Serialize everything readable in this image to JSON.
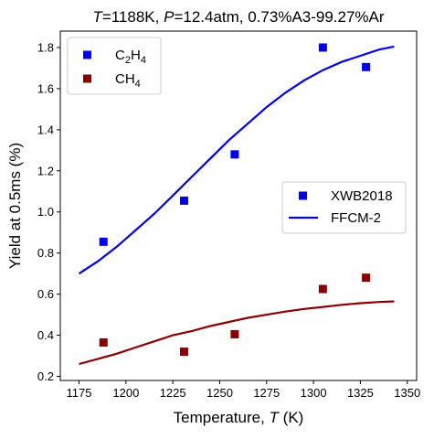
{
  "chart_data": {
    "type": "scatter",
    "title_parts": [
      {
        "text": "T",
        "italic": true
      },
      {
        "text": "=1188K, ",
        "italic": false
      },
      {
        "text": "P",
        "italic": true
      },
      {
        "text": "=12.4atm, 0.73%A3-99.27%Ar",
        "italic": false
      }
    ],
    "xlabel_parts": [
      {
        "text": "Temperature, ",
        "italic": false
      },
      {
        "text": "T",
        "italic": true
      },
      {
        "text": " (K)",
        "italic": false
      }
    ],
    "ylabel": "Yield at 0.5ms (%)",
    "xlim": [
      1165,
      1355
    ],
    "ylim": [
      0.18,
      1.88
    ],
    "xticks": [
      1175,
      1200,
      1225,
      1250,
      1275,
      1300,
      1325,
      1350
    ],
    "yticks": [
      0.2,
      0.4,
      0.6,
      0.8,
      1.0,
      1.2,
      1.4,
      1.6,
      1.8
    ],
    "ytick_labels": [
      "0.2",
      "0.4",
      "0.6",
      "0.8",
      "1.0",
      "1.2",
      "1.4",
      "1.6",
      "1.8"
    ],
    "grid": false,
    "species_legend": {
      "placement": "top-left",
      "entries": [
        {
          "base": "C",
          "sub1": "2",
          "mid": "H",
          "sub2": "4",
          "color": "#0000ff"
        },
        {
          "base": "CH",
          "sub1": "4",
          "mid": "",
          "sub2": "",
          "color": "#8b0000"
        }
      ]
    },
    "source_legend": {
      "placement": "center-right",
      "entries": [
        {
          "label": "XWB2018",
          "style": "marker"
        },
        {
          "label": "FFCM-2",
          "style": "line"
        }
      ]
    },
    "series": [
      {
        "name": "C2H4 XWB2018",
        "kind": "scatter",
        "color": "#0000ff",
        "x": [
          1188,
          1231,
          1258,
          1305,
          1328
        ],
        "y": [
          0.855,
          1.055,
          1.28,
          1.8,
          1.705
        ]
      },
      {
        "name": "CH4 XWB2018",
        "kind": "scatter",
        "color": "#8b0000",
        "x": [
          1188,
          1231,
          1258,
          1305,
          1328
        ],
        "y": [
          0.365,
          0.32,
          0.405,
          0.625,
          0.68
        ]
      },
      {
        "name": "C2H4 FFCM-2",
        "kind": "line",
        "color": "#0000ff",
        "x": [
          1175,
          1185,
          1195,
          1205,
          1215,
          1225,
          1235,
          1245,
          1255,
          1265,
          1275,
          1285,
          1295,
          1305,
          1315,
          1325,
          1335,
          1343
        ],
        "y": [
          0.7,
          0.76,
          0.83,
          0.91,
          0.99,
          1.08,
          1.17,
          1.26,
          1.35,
          1.43,
          1.51,
          1.58,
          1.64,
          1.69,
          1.73,
          1.76,
          1.79,
          1.805
        ]
      },
      {
        "name": "CH4 FFCM-2",
        "kind": "line",
        "color": "#8b0000",
        "x": [
          1175,
          1185,
          1195,
          1205,
          1215,
          1225,
          1235,
          1245,
          1255,
          1265,
          1275,
          1285,
          1295,
          1305,
          1315,
          1325,
          1335,
          1343
        ],
        "y": [
          0.26,
          0.285,
          0.31,
          0.34,
          0.37,
          0.4,
          0.42,
          0.445,
          0.465,
          0.485,
          0.5,
          0.515,
          0.528,
          0.538,
          0.548,
          0.556,
          0.562,
          0.565
        ]
      }
    ]
  }
}
